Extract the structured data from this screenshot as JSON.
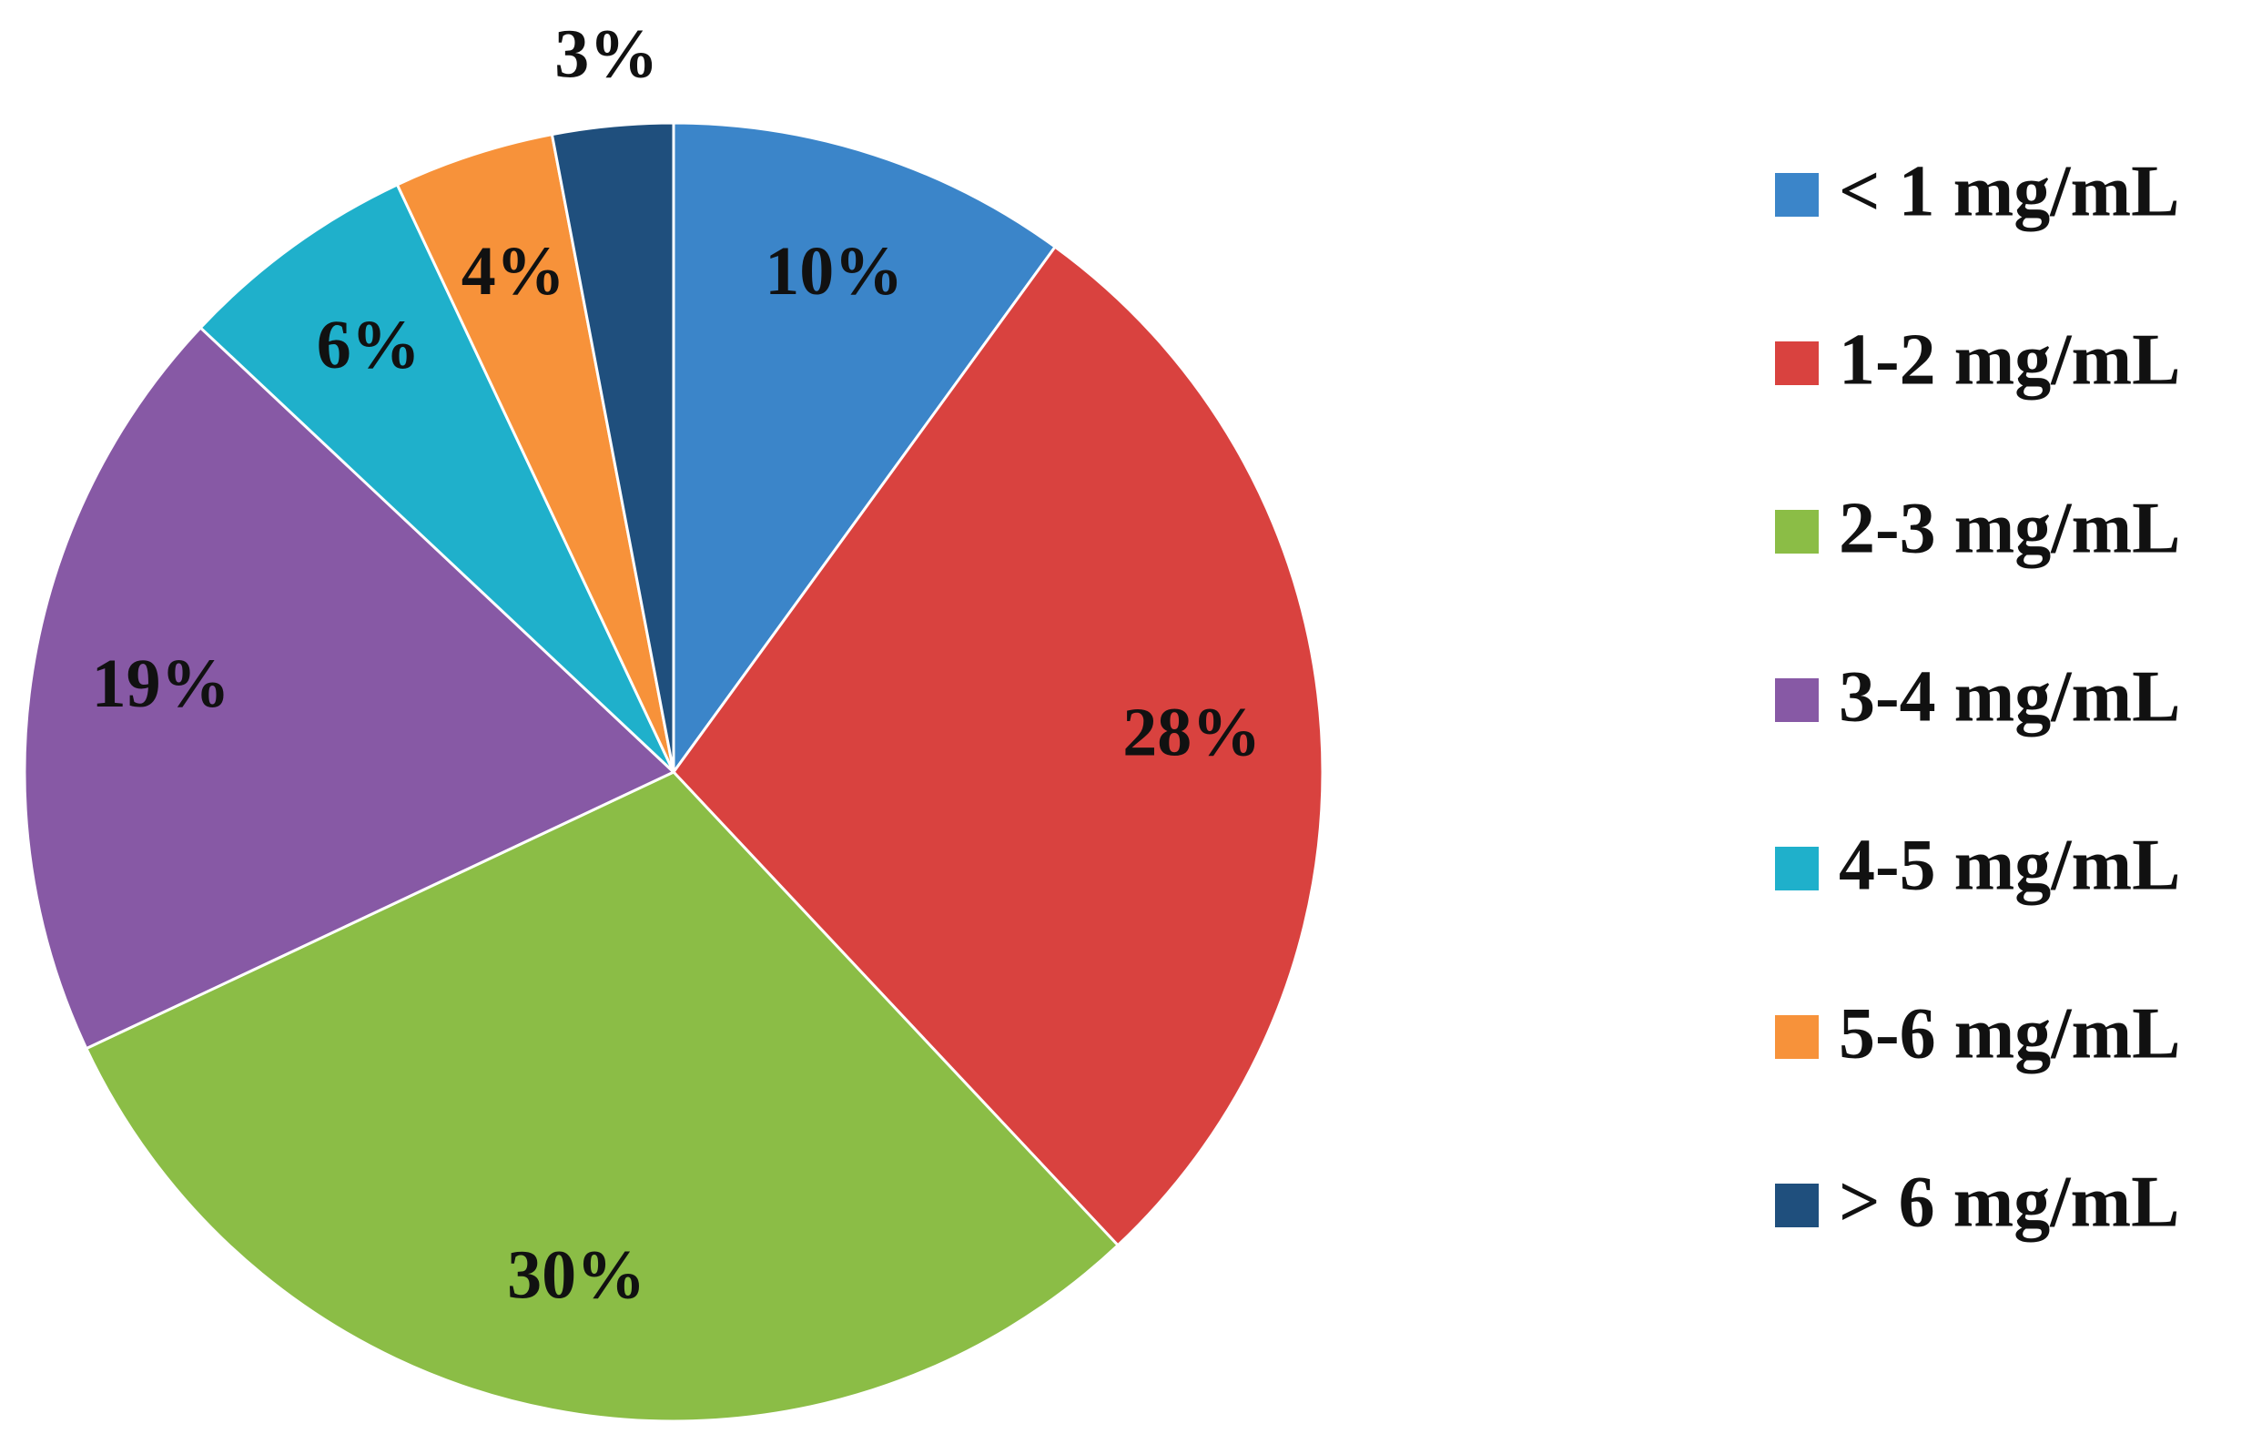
{
  "chart_data": {
    "type": "pie",
    "categories": [
      "< 1 mg/mL",
      "1-2 mg/mL",
      "2-3 mg/mL",
      "3-4 mg/mL",
      "4-5 mg/mL",
      "5-6 mg/mL",
      "> 6 mg/mL"
    ],
    "values": [
      10,
      28,
      30,
      19,
      6,
      4,
      3
    ],
    "value_labels": [
      "10%",
      "28%",
      "30%",
      "19%",
      "6%",
      "4%",
      "3%"
    ],
    "colors": [
      "#3b85c9",
      "#d9423f",
      "#8bbd46",
      "#8759a5",
      "#1fb0cb",
      "#f7923a",
      "#1f4f7d"
    ],
    "legend": "right"
  }
}
